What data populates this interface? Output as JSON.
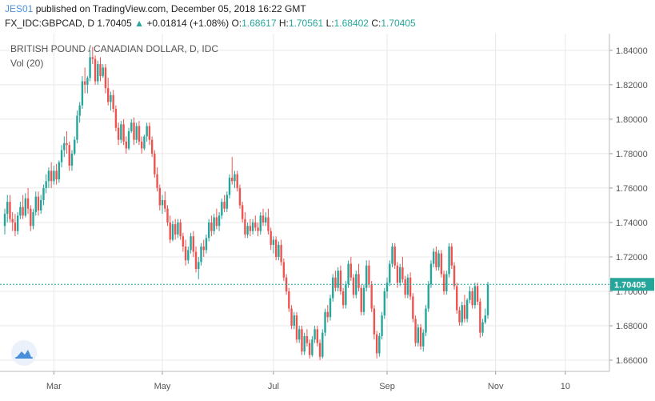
{
  "header": {
    "author": "JES01",
    "published_text": "published on TradingView.com, December 05, 2018 16:22 GMT",
    "symbol": "FX_IDC:GBPCAD, D",
    "last": "1.70405",
    "change_arrow": "▲",
    "change": "+0.01814 (+1.08%)",
    "o_label": "O:",
    "o_value": "1.68617",
    "h_label": "H:",
    "h_value": "1.70561",
    "l_label": "L:",
    "l_value": "1.68402",
    "c_label": "C:",
    "c_value": "1.70405"
  },
  "legend": {
    "title": "BRITISH POUND / CANADIAN DOLLAR, D, IDC",
    "volume": "Vol (20)"
  },
  "icons": {
    "logo": "tradingview-cloud-icon"
  },
  "colors": {
    "up": "#26a69a",
    "down": "#ef5350",
    "grid": "#e8e8e8",
    "price_line": "#26a69a",
    "price_tag_bg": "#26a69a",
    "price_tag_text": "#ffffff",
    "axis_text": "#555555"
  },
  "chart_data": {
    "type": "candlestick",
    "title": "BRITISH POUND / CANADIAN DOLLAR, D, IDC",
    "ylim": [
      1.6535,
      1.8497
    ],
    "y_ticks": [
      "1.84000",
      "1.82000",
      "1.80000",
      "1.78000",
      "1.76000",
      "1.74000",
      "1.72000",
      "1.70000",
      "1.68000",
      "1.66000"
    ],
    "x_ticks": [
      "Mar",
      "May",
      "Jul",
      "Sep",
      "Nov",
      "10"
    ],
    "x_tick_index": [
      19,
      61,
      104,
      148,
      190,
      217
    ],
    "current_price": 1.70405,
    "current_price_label": "1.70405",
    "grid": true,
    "candles": [
      [
        1.738,
        1.748,
        1.733,
        1.745
      ],
      [
        1.745,
        1.756,
        1.74,
        1.752
      ],
      [
        1.752,
        1.756,
        1.74,
        1.742
      ],
      [
        1.742,
        1.746,
        1.735,
        1.74
      ],
      [
        1.74,
        1.745,
        1.732,
        1.735
      ],
      [
        1.735,
        1.746,
        1.733,
        1.744
      ],
      [
        1.744,
        1.752,
        1.742,
        1.749
      ],
      [
        1.749,
        1.756,
        1.742,
        1.744
      ],
      [
        1.744,
        1.757,
        1.743,
        1.754
      ],
      [
        1.754,
        1.76,
        1.745,
        1.748
      ],
      [
        1.748,
        1.75,
        1.735,
        1.738
      ],
      [
        1.738,
        1.748,
        1.736,
        1.746
      ],
      [
        1.746,
        1.758,
        1.744,
        1.755
      ],
      [
        1.755,
        1.758,
        1.744,
        1.747
      ],
      [
        1.747,
        1.756,
        1.745,
        1.753
      ],
      [
        1.753,
        1.762,
        1.75,
        1.76
      ],
      [
        1.76,
        1.768,
        1.757,
        1.764
      ],
      [
        1.764,
        1.772,
        1.76,
        1.77
      ],
      [
        1.77,
        1.775,
        1.76,
        1.764
      ],
      [
        1.764,
        1.773,
        1.762,
        1.77
      ],
      [
        1.77,
        1.774,
        1.762,
        1.765
      ],
      [
        1.765,
        1.776,
        1.763,
        1.775
      ],
      [
        1.775,
        1.785,
        1.772,
        1.782
      ],
      [
        1.782,
        1.79,
        1.778,
        1.786
      ],
      [
        1.786,
        1.793,
        1.78,
        1.785
      ],
      [
        1.785,
        1.787,
        1.77,
        1.773
      ],
      [
        1.773,
        1.782,
        1.77,
        1.78
      ],
      [
        1.78,
        1.79,
        1.779,
        1.788
      ],
      [
        1.788,
        1.805,
        1.786,
        1.802
      ],
      [
        1.802,
        1.81,
        1.798,
        1.808
      ],
      [
        1.808,
        1.825,
        1.806,
        1.822
      ],
      [
        1.822,
        1.83,
        1.815,
        1.82
      ],
      [
        1.82,
        1.825,
        1.815,
        1.824
      ],
      [
        1.824,
        1.84,
        1.822,
        1.836
      ],
      [
        1.836,
        1.842,
        1.832,
        1.835
      ],
      [
        1.835,
        1.837,
        1.82,
        1.822
      ],
      [
        1.822,
        1.834,
        1.82,
        1.832
      ],
      [
        1.832,
        1.836,
        1.822,
        1.825
      ],
      [
        1.825,
        1.832,
        1.824,
        1.83
      ],
      [
        1.83,
        1.832,
        1.815,
        1.818
      ],
      [
        1.818,
        1.824,
        1.808,
        1.81
      ],
      [
        1.81,
        1.816,
        1.805,
        1.814
      ],
      [
        1.814,
        1.817,
        1.804,
        1.806
      ],
      [
        1.806,
        1.808,
        1.793,
        1.795
      ],
      [
        1.795,
        1.798,
        1.785,
        1.788
      ],
      [
        1.788,
        1.799,
        1.786,
        1.797
      ],
      [
        1.797,
        1.8,
        1.785,
        1.787
      ],
      [
        1.787,
        1.79,
        1.78,
        1.783
      ],
      [
        1.783,
        1.795,
        1.782,
        1.793
      ],
      [
        1.793,
        1.8,
        1.792,
        1.798
      ],
      [
        1.798,
        1.801,
        1.785,
        1.788
      ],
      [
        1.788,
        1.798,
        1.786,
        1.796
      ],
      [
        1.796,
        1.799,
        1.785,
        1.787
      ],
      [
        1.787,
        1.79,
        1.78,
        1.783
      ],
      [
        1.783,
        1.791,
        1.782,
        1.79
      ],
      [
        1.79,
        1.798,
        1.787,
        1.796
      ],
      [
        1.796,
        1.798,
        1.785,
        1.788
      ],
      [
        1.788,
        1.79,
        1.778,
        1.78
      ],
      [
        1.78,
        1.782,
        1.766,
        1.768
      ],
      [
        1.768,
        1.772,
        1.758,
        1.76
      ],
      [
        1.76,
        1.762,
        1.747,
        1.75
      ],
      [
        1.75,
        1.756,
        1.745,
        1.753
      ],
      [
        1.753,
        1.758,
        1.746,
        1.748
      ],
      [
        1.748,
        1.75,
        1.738,
        1.74
      ],
      [
        1.74,
        1.744,
        1.728,
        1.73
      ],
      [
        1.73,
        1.741,
        1.729,
        1.739
      ],
      [
        1.739,
        1.742,
        1.73,
        1.733
      ],
      [
        1.733,
        1.742,
        1.731,
        1.74
      ],
      [
        1.74,
        1.742,
        1.73,
        1.732
      ],
      [
        1.732,
        1.734,
        1.723,
        1.726
      ],
      [
        1.726,
        1.73,
        1.715,
        1.718
      ],
      [
        1.718,
        1.726,
        1.716,
        1.724
      ],
      [
        1.724,
        1.734,
        1.722,
        1.732
      ],
      [
        1.732,
        1.735,
        1.72,
        1.723
      ],
      [
        1.723,
        1.726,
        1.711,
        1.713
      ],
      [
        1.713,
        1.72,
        1.707,
        1.717
      ],
      [
        1.717,
        1.728,
        1.715,
        1.726
      ],
      [
        1.726,
        1.73,
        1.72,
        1.724
      ],
      [
        1.724,
        1.733,
        1.722,
        1.731
      ],
      [
        1.731,
        1.742,
        1.729,
        1.74
      ],
      [
        1.74,
        1.744,
        1.732,
        1.735
      ],
      [
        1.735,
        1.745,
        1.733,
        1.743
      ],
      [
        1.743,
        1.748,
        1.736,
        1.738
      ],
      [
        1.738,
        1.746,
        1.735,
        1.744
      ],
      [
        1.744,
        1.754,
        1.742,
        1.752
      ],
      [
        1.752,
        1.756,
        1.746,
        1.748
      ],
      [
        1.748,
        1.758,
        1.746,
        1.756
      ],
      [
        1.756,
        1.768,
        1.754,
        1.766
      ],
      [
        1.766,
        1.778,
        1.762,
        1.764
      ],
      [
        1.764,
        1.77,
        1.76,
        1.768
      ],
      [
        1.768,
        1.77,
        1.758,
        1.76
      ],
      [
        1.76,
        1.762,
        1.748,
        1.75
      ],
      [
        1.75,
        1.752,
        1.74,
        1.742
      ],
      [
        1.742,
        1.746,
        1.731,
        1.733
      ],
      [
        1.733,
        1.74,
        1.731,
        1.738
      ],
      [
        1.738,
        1.742,
        1.732,
        1.735
      ],
      [
        1.735,
        1.742,
        1.733,
        1.74
      ],
      [
        1.74,
        1.744,
        1.735,
        1.737
      ],
      [
        1.737,
        1.74,
        1.732,
        1.735
      ],
      [
        1.735,
        1.746,
        1.733,
        1.744
      ],
      [
        1.744,
        1.748,
        1.738,
        1.74
      ],
      [
        1.74,
        1.746,
        1.738,
        1.743
      ],
      [
        1.743,
        1.748,
        1.733,
        1.735
      ],
      [
        1.735,
        1.737,
        1.724,
        1.727
      ],
      [
        1.727,
        1.732,
        1.722,
        1.73
      ],
      [
        1.73,
        1.732,
        1.718,
        1.72
      ],
      [
        1.72,
        1.729,
        1.718,
        1.727
      ],
      [
        1.727,
        1.73,
        1.715,
        1.717
      ],
      [
        1.717,
        1.719,
        1.706,
        1.708
      ],
      [
        1.708,
        1.71,
        1.698,
        1.7
      ],
      [
        1.7,
        1.702,
        1.688,
        1.69
      ],
      [
        1.69,
        1.692,
        1.678,
        1.68
      ],
      [
        1.68,
        1.688,
        1.678,
        1.686
      ],
      [
        1.686,
        1.688,
        1.67,
        1.672
      ],
      [
        1.672,
        1.68,
        1.67,
        1.678
      ],
      [
        1.678,
        1.68,
        1.663,
        1.665
      ],
      [
        1.665,
        1.676,
        1.663,
        1.674
      ],
      [
        1.674,
        1.678,
        1.668,
        1.67
      ],
      [
        1.67,
        1.672,
        1.661,
        1.663
      ],
      [
        1.663,
        1.674,
        1.662,
        1.672
      ],
      [
        1.672,
        1.68,
        1.67,
        1.678
      ],
      [
        1.678,
        1.68,
        1.668,
        1.67
      ],
      [
        1.67,
        1.672,
        1.66,
        1.662
      ],
      [
        1.662,
        1.678,
        1.661,
        1.676
      ],
      [
        1.676,
        1.69,
        1.674,
        1.688
      ],
      [
        1.688,
        1.692,
        1.682,
        1.685
      ],
      [
        1.685,
        1.698,
        1.683,
        1.696
      ],
      [
        1.696,
        1.71,
        1.694,
        1.708
      ],
      [
        1.708,
        1.712,
        1.7,
        1.702
      ],
      [
        1.702,
        1.714,
        1.7,
        1.712
      ],
      [
        1.712,
        1.715,
        1.698,
        1.7
      ],
      [
        1.7,
        1.702,
        1.69,
        1.692
      ],
      [
        1.692,
        1.706,
        1.69,
        1.704
      ],
      [
        1.704,
        1.718,
        1.702,
        1.716
      ],
      [
        1.716,
        1.72,
        1.706,
        1.708
      ],
      [
        1.708,
        1.71,
        1.696,
        1.698
      ],
      [
        1.698,
        1.712,
        1.696,
        1.71
      ],
      [
        1.71,
        1.716,
        1.7,
        1.702
      ],
      [
        1.702,
        1.704,
        1.686,
        1.688
      ],
      [
        1.688,
        1.704,
        1.686,
        1.702
      ],
      [
        1.702,
        1.718,
        1.7,
        1.715
      ],
      [
        1.715,
        1.718,
        1.702,
        1.704
      ],
      [
        1.704,
        1.706,
        1.688,
        1.69
      ],
      [
        1.69,
        1.692,
        1.672,
        1.675
      ],
      [
        1.675,
        1.677,
        1.661,
        1.664
      ],
      [
        1.664,
        1.676,
        1.662,
        1.674
      ],
      [
        1.674,
        1.688,
        1.672,
        1.686
      ],
      [
        1.686,
        1.702,
        1.684,
        1.7
      ],
      [
        1.7,
        1.708,
        1.696,
        1.705
      ],
      [
        1.705,
        1.718,
        1.703,
        1.716
      ],
      [
        1.716,
        1.728,
        1.714,
        1.726
      ],
      [
        1.726,
        1.728,
        1.713,
        1.715
      ],
      [
        1.715,
        1.717,
        1.702,
        1.705
      ],
      [
        1.705,
        1.716,
        1.703,
        1.714
      ],
      [
        1.714,
        1.72,
        1.705,
        1.707
      ],
      [
        1.707,
        1.709,
        1.696,
        1.698
      ],
      [
        1.698,
        1.71,
        1.696,
        1.708
      ],
      [
        1.708,
        1.711,
        1.695,
        1.697
      ],
      [
        1.697,
        1.699,
        1.682,
        1.684
      ],
      [
        1.684,
        1.686,
        1.668,
        1.67
      ],
      [
        1.67,
        1.681,
        1.668,
        1.679
      ],
      [
        1.679,
        1.681,
        1.666,
        1.668
      ],
      [
        1.668,
        1.678,
        1.665,
        1.676
      ],
      [
        1.676,
        1.692,
        1.674,
        1.69
      ],
      [
        1.69,
        1.706,
        1.688,
        1.704
      ],
      [
        1.704,
        1.718,
        1.702,
        1.716
      ],
      [
        1.716,
        1.725,
        1.714,
        1.723
      ],
      [
        1.723,
        1.726,
        1.712,
        1.714
      ],
      [
        1.714,
        1.724,
        1.712,
        1.722
      ],
      [
        1.722,
        1.724,
        1.708,
        1.71
      ],
      [
        1.71,
        1.712,
        1.698,
        1.7
      ],
      [
        1.7,
        1.712,
        1.698,
        1.71
      ],
      [
        1.71,
        1.728,
        1.708,
        1.726
      ],
      [
        1.726,
        1.728,
        1.713,
        1.715
      ],
      [
        1.715,
        1.717,
        1.701,
        1.703
      ],
      [
        1.703,
        1.705,
        1.687,
        1.689
      ],
      [
        1.689,
        1.691,
        1.68,
        1.682
      ],
      [
        1.682,
        1.694,
        1.68,
        1.692
      ],
      [
        1.692,
        1.698,
        1.682,
        1.684
      ],
      [
        1.684,
        1.696,
        1.682,
        1.695
      ],
      [
        1.695,
        1.703,
        1.693,
        1.7
      ],
      [
        1.7,
        1.702,
        1.69,
        1.692
      ],
      [
        1.692,
        1.705,
        1.69,
        1.703
      ],
      [
        1.703,
        1.705,
        1.692,
        1.694
      ],
      [
        1.694,
        1.696,
        1.673,
        1.676
      ],
      [
        1.676,
        1.684,
        1.674,
        1.682
      ],
      [
        1.682,
        1.69,
        1.681,
        1.686
      ],
      [
        1.6861,
        1.7056,
        1.684,
        1.704
      ]
    ]
  }
}
